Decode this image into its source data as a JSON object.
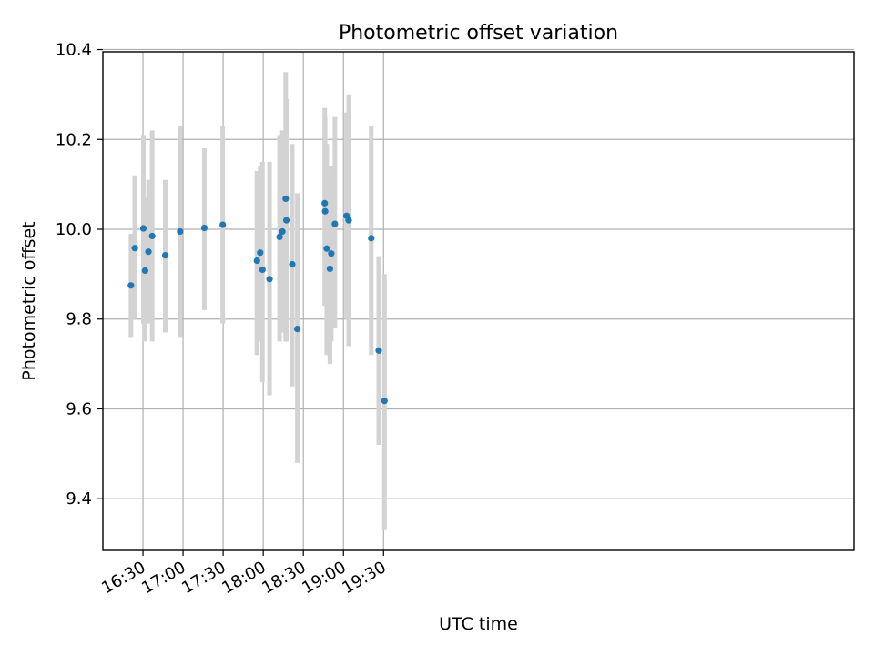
{
  "chart_data": {
    "type": "scatter",
    "title": "Photometric offset variation",
    "xlabel": "UTC time",
    "ylabel": "Photometric offset",
    "xlim": [
      960,
      1522
    ],
    "ylim": [
      9.285,
      10.395
    ],
    "grid": true,
    "x_ticks": [
      {
        "value": 990,
        "label": "16:30"
      },
      {
        "value": 1020,
        "label": "17:00"
      },
      {
        "value": 1050,
        "label": "17:30"
      },
      {
        "value": 1080,
        "label": "18:00"
      },
      {
        "value": 1110,
        "label": "18:30"
      },
      {
        "value": 1140,
        "label": "19:00"
      },
      {
        "value": 1170,
        "label": "19:30"
      }
    ],
    "y_ticks": [
      {
        "value": 9.4,
        "label": "9.4"
      },
      {
        "value": 9.6,
        "label": "9.6"
      },
      {
        "value": 9.8,
        "label": "9.8"
      },
      {
        "value": 10.0,
        "label": "10.0"
      },
      {
        "value": 10.2,
        "label": "10.2"
      },
      {
        "value": 10.4,
        "label": "10.4"
      }
    ],
    "x_unit_note": "x values in minutes after 00:00 UTC",
    "series": [
      {
        "name": "offset",
        "color": "#1f77b4",
        "errorbar_color": "#d3d3d3",
        "points": [
          {
            "x": 981.0,
            "y": 9.875,
            "lo": 9.76,
            "hi": 9.99
          },
          {
            "x": 983.9,
            "y": 9.958,
            "lo": 9.8,
            "hi": 10.12
          },
          {
            "x": 990.3,
            "y": 10.002,
            "lo": 9.79,
            "hi": 10.21
          },
          {
            "x": 991.6,
            "y": 9.908,
            "lo": 9.75,
            "hi": 10.07
          },
          {
            "x": 994.1,
            "y": 9.95,
            "lo": 9.79,
            "hi": 10.11
          },
          {
            "x": 996.9,
            "y": 9.985,
            "lo": 9.75,
            "hi": 10.22
          },
          {
            "x": 1006.7,
            "y": 9.942,
            "lo": 9.77,
            "hi": 10.11
          },
          {
            "x": 1017.8,
            "y": 9.995,
            "lo": 9.76,
            "hi": 10.23
          },
          {
            "x": 1035.9,
            "y": 10.003,
            "lo": 9.82,
            "hi": 10.18
          },
          {
            "x": 1049.7,
            "y": 10.01,
            "lo": 9.79,
            "hi": 10.23
          },
          {
            "x": 1075.3,
            "y": 9.93,
            "lo": 9.72,
            "hi": 10.13
          },
          {
            "x": 1077.7,
            "y": 9.948,
            "lo": 9.75,
            "hi": 10.14
          },
          {
            "x": 1079.4,
            "y": 9.91,
            "lo": 9.66,
            "hi": 10.15
          },
          {
            "x": 1084.7,
            "y": 9.889,
            "lo": 9.63,
            "hi": 10.15
          },
          {
            "x": 1092.2,
            "y": 9.983,
            "lo": 9.75,
            "hi": 10.21
          },
          {
            "x": 1094.3,
            "y": 9.995,
            "lo": 9.77,
            "hi": 10.22
          },
          {
            "x": 1096.8,
            "y": 10.068,
            "lo": 9.75,
            "hi": 10.35
          },
          {
            "x": 1097.3,
            "y": 10.02,
            "lo": 9.75,
            "hi": 10.29
          },
          {
            "x": 1101.7,
            "y": 9.922,
            "lo": 9.65,
            "hi": 10.19
          },
          {
            "x": 1105.5,
            "y": 9.778,
            "lo": 9.48,
            "hi": 10.08
          },
          {
            "x": 1126.0,
            "y": 10.058,
            "lo": 9.83,
            "hi": 10.27
          },
          {
            "x": 1126.3,
            "y": 10.04,
            "lo": 9.83,
            "hi": 10.25
          },
          {
            "x": 1127.5,
            "y": 9.957,
            "lo": 9.72,
            "hi": 10.19
          },
          {
            "x": 1129.9,
            "y": 9.912,
            "lo": 9.7,
            "hi": 10.12
          },
          {
            "x": 1130.9,
            "y": 9.946,
            "lo": 9.75,
            "hi": 10.14
          },
          {
            "x": 1133.6,
            "y": 10.012,
            "lo": 9.78,
            "hi": 10.25
          },
          {
            "x": 1142.3,
            "y": 10.03,
            "lo": 9.8,
            "hi": 10.26
          },
          {
            "x": 1143.9,
            "y": 10.02,
            "lo": 9.74,
            "hi": 10.3
          },
          {
            "x": 1160.8,
            "y": 9.98,
            "lo": 9.72,
            "hi": 10.23
          },
          {
            "x": 1166.4,
            "y": 9.73,
            "lo": 9.52,
            "hi": 9.94
          },
          {
            "x": 1170.7,
            "y": 9.618,
            "lo": 9.33,
            "hi": 9.9
          }
        ]
      }
    ]
  }
}
